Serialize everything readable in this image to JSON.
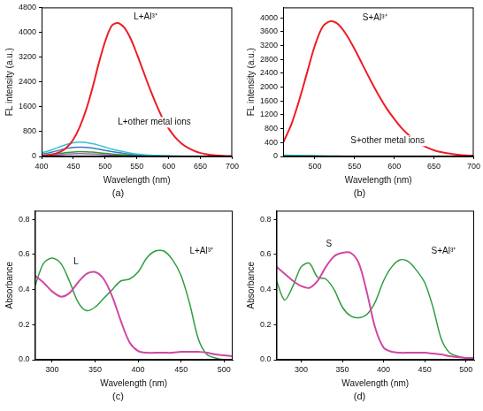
{
  "chart_data": [
    {
      "type": "line",
      "title": "(a)",
      "x_label": "Wavelength (nm)",
      "y_label": "FL intensity (a.u.)",
      "grid": false,
      "xlim": [
        400,
        700
      ],
      "xticks": [
        400,
        450,
        500,
        550,
        600,
        650,
        700
      ],
      "ylim": [
        0,
        4800
      ],
      "yticks": [
        0,
        800,
        1600,
        2400,
        3200,
        4000,
        4800
      ],
      "x": [
        400,
        410,
        420,
        430,
        440,
        450,
        460,
        470,
        480,
        490,
        500,
        510,
        520,
        530,
        540,
        550,
        560,
        570,
        580,
        590,
        600,
        610,
        620,
        630,
        640,
        650,
        660,
        670,
        680,
        690,
        700
      ],
      "series": [
        {
          "name": "L+Al³⁺",
          "color": "#ee1c25",
          "values": [
            20,
            40,
            80,
            150,
            300,
            550,
            950,
            1500,
            2200,
            3000,
            3700,
            4200,
            4300,
            4150,
            3800,
            3300,
            2750,
            2200,
            1700,
            1250,
            900,
            620,
            420,
            280,
            180,
            110,
            70,
            40,
            25,
            15,
            10
          ]
        },
        {
          "name": "L+other metal ions",
          "color": "#33c3d0",
          "values": [
            120,
            170,
            240,
            320,
            390,
            440,
            460,
            450,
            410,
            360,
            300,
            240,
            190,
            150,
            110,
            80,
            60,
            45,
            35,
            25,
            20,
            15,
            10,
            8,
            6,
            5,
            4,
            3,
            2,
            2,
            1
          ]
        },
        {
          "name": "L+other metal ions",
          "color": "#4472c4",
          "values": [
            80,
            110,
            160,
            210,
            260,
            290,
            300,
            295,
            270,
            235,
            195,
            160,
            125,
            95,
            72,
            53,
            40,
            30,
            22,
            16,
            12,
            9,
            7,
            5,
            4,
            3,
            2,
            2,
            1,
            1,
            1
          ]
        },
        {
          "name": "L+other metal ions",
          "color": "#2ca02c",
          "values": [
            40,
            55,
            75,
            100,
            125,
            145,
            155,
            150,
            140,
            120,
            100,
            80,
            62,
            48,
            36,
            27,
            20,
            15,
            11,
            8,
            6,
            4,
            3,
            2,
            2,
            1,
            1,
            1,
            1,
            0,
            0
          ]
        },
        {
          "name": "L+other metal ions",
          "color": "#9b59b6",
          "values": [
            20,
            30,
            45,
            60,
            75,
            85,
            90,
            88,
            80,
            70,
            58,
            47,
            37,
            28,
            21,
            16,
            12,
            9,
            7,
            5,
            4,
            3,
            2,
            2,
            1,
            1,
            1,
            0,
            0,
            0,
            0
          ]
        }
      ],
      "annotations": [
        {
          "text": "L+Al³⁺",
          "x": 545,
          "y": 4500
        },
        {
          "text": "L+other metal ions",
          "x": 520,
          "y": 1100
        }
      ]
    },
    {
      "type": "line",
      "title": "(b)",
      "x_label": "Wavelength (nm)",
      "y_label": "FL intensity (a.u.)",
      "grid": false,
      "xlim": [
        460,
        700
      ],
      "xticks": [
        500,
        550,
        600,
        650,
        700
      ],
      "ylim": [
        0,
        4300
      ],
      "yticks": [
        0,
        400,
        800,
        1200,
        1600,
        2000,
        2400,
        2800,
        3200,
        3600,
        4000
      ],
      "x": [
        460,
        470,
        480,
        490,
        500,
        510,
        520,
        530,
        540,
        550,
        560,
        570,
        580,
        590,
        600,
        610,
        620,
        630,
        640,
        650,
        660,
        670,
        680,
        690,
        700
      ],
      "series": [
        {
          "name": "S+Al³⁺",
          "color": "#ee1c25",
          "values": [
            400,
            900,
            1600,
            2400,
            3200,
            3750,
            3900,
            3800,
            3500,
            3100,
            2650,
            2200,
            1780,
            1400,
            1080,
            800,
            580,
            400,
            270,
            180,
            120,
            80,
            50,
            30,
            20
          ]
        },
        {
          "name": "S+other metal ions",
          "color": "#33c3d0",
          "values": [
            40,
            35,
            30,
            25,
            20,
            16,
            13,
            10,
            8,
            6,
            5,
            4,
            3,
            3,
            2,
            2,
            2,
            1,
            1,
            1,
            1,
            1,
            1,
            1,
            1
          ]
        },
        {
          "name": "S+other metal ions",
          "color": "#2ca02c",
          "values": [
            20,
            18,
            15,
            12,
            10,
            8,
            6,
            5,
            4,
            3,
            3,
            2,
            2,
            1,
            1,
            1,
            1,
            1,
            1,
            0,
            0,
            0,
            0,
            0,
            0
          ]
        }
      ],
      "annotations": [
        {
          "text": "S+Al³⁺",
          "x": 560,
          "y": 4000
        },
        {
          "text": "S+other metal ions",
          "x": 545,
          "y": 450
        }
      ]
    },
    {
      "type": "line",
      "title": "(c)",
      "x_label": "Wavelength (nm)",
      "y_label": "Absorbance",
      "grid": false,
      "xlim": [
        280,
        510
      ],
      "xticks": [
        300,
        350,
        400,
        450,
        500
      ],
      "ylim": [
        0,
        0.85
      ],
      "yticks": [
        {
          "value": 0,
          "label": "0.0"
        },
        {
          "value": 0.2,
          "label": "0.2"
        },
        {
          "value": 0.4,
          "label": "0.4"
        },
        {
          "value": 0.6,
          "label": "0.6"
        },
        {
          "value": 0.8,
          "label": "0.8"
        }
      ],
      "x": [
        280,
        290,
        300,
        310,
        320,
        330,
        340,
        350,
        360,
        370,
        380,
        390,
        400,
        410,
        420,
        430,
        440,
        450,
        460,
        470,
        480,
        490,
        500,
        510
      ],
      "series": [
        {
          "name": "L",
          "color": "#d147a3",
          "values": [
            0.48,
            0.44,
            0.39,
            0.36,
            0.38,
            0.44,
            0.49,
            0.5,
            0.46,
            0.36,
            0.22,
            0.1,
            0.05,
            0.04,
            0.04,
            0.04,
            0.04,
            0.045,
            0.045,
            0.045,
            0.04,
            0.03,
            0.025,
            0.02
          ]
        },
        {
          "name": "L+Al³⁺",
          "color": "#2e9e3e",
          "values": [
            0.42,
            0.55,
            0.58,
            0.55,
            0.45,
            0.33,
            0.28,
            0.3,
            0.35,
            0.4,
            0.45,
            0.46,
            0.5,
            0.58,
            0.62,
            0.62,
            0.57,
            0.48,
            0.32,
            0.12,
            0.03,
            0.01,
            0.0,
            0.0
          ]
        }
      ],
      "annotations": [
        {
          "text": "L",
          "x": 325,
          "y": 0.56
        },
        {
          "text": "L+Al³⁺",
          "x": 460,
          "y": 0.62
        }
      ]
    },
    {
      "type": "line",
      "title": "(d)",
      "x_label": "Wavelength (nm)",
      "y_label": "Absorbance",
      "grid": false,
      "xlim": [
        270,
        510
      ],
      "xticks": [
        300,
        350,
        400,
        450,
        500
      ],
      "ylim": [
        0,
        0.85
      ],
      "yticks": [
        {
          "value": 0,
          "label": "0.0"
        },
        {
          "value": 0.2,
          "label": "0.2"
        },
        {
          "value": 0.4,
          "label": "0.4"
        },
        {
          "value": 0.6,
          "label": "0.6"
        },
        {
          "value": 0.8,
          "label": "0.8"
        }
      ],
      "x": [
        270,
        280,
        290,
        300,
        310,
        320,
        330,
        340,
        350,
        360,
        370,
        380,
        390,
        400,
        410,
        420,
        430,
        440,
        450,
        460,
        470,
        480,
        490,
        500,
        510
      ],
      "series": [
        {
          "name": "S",
          "color": "#d147a3",
          "values": [
            0.53,
            0.49,
            0.45,
            0.42,
            0.41,
            0.45,
            0.53,
            0.59,
            0.61,
            0.61,
            0.55,
            0.38,
            0.18,
            0.07,
            0.045,
            0.04,
            0.04,
            0.04,
            0.04,
            0.035,
            0.03,
            0.02,
            0.015,
            0.01,
            0.01
          ]
        },
        {
          "name": "S+Al³⁺",
          "color": "#2e9e3e",
          "values": [
            0.45,
            0.34,
            0.42,
            0.53,
            0.55,
            0.47,
            0.46,
            0.4,
            0.3,
            0.25,
            0.24,
            0.26,
            0.33,
            0.45,
            0.53,
            0.57,
            0.56,
            0.51,
            0.44,
            0.3,
            0.12,
            0.04,
            0.02,
            0.01,
            0.01
          ]
        }
      ],
      "annotations": [
        {
          "text": "S",
          "x": 330,
          "y": 0.66
        },
        {
          "text": "S+Al³⁺",
          "x": 458,
          "y": 0.62
        }
      ]
    }
  ]
}
